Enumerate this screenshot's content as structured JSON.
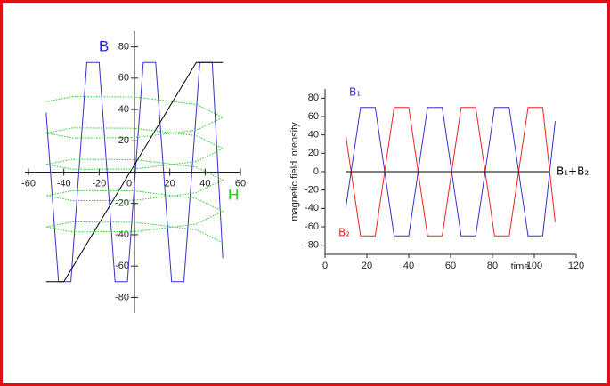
{
  "chart_data": [
    {
      "type": "line",
      "xlabel": "H",
      "ylabel": "B",
      "xlim": [
        -60,
        60
      ],
      "ylim": [
        -90,
        90
      ],
      "xticks": [
        -60,
        -40,
        -20,
        0,
        20,
        40,
        60
      ],
      "yticks": [
        -80,
        -60,
        -40,
        -20,
        0,
        20,
        40,
        60,
        80
      ],
      "series": [
        {
          "color": "#3333cc",
          "line_style": "solid",
          "x": [
            -50,
            -43,
            -36,
            -27,
            -20,
            -11,
            -4,
            5,
            12,
            21,
            28,
            37,
            44,
            50
          ],
          "values": [
            38,
            -70,
            -70,
            70,
            70,
            -70,
            -70,
            70,
            70,
            -70,
            -70,
            70,
            70,
            -55
          ]
        },
        {
          "color": "#000000",
          "line_style": "solid",
          "x": [
            -50,
            -40,
            35,
            50
          ],
          "values": [
            -70,
            -70,
            70,
            70
          ]
        },
        {
          "color": "#22cc22",
          "line_style": "dotted",
          "x": [
            50,
            35,
            0,
            -35,
            -50,
            -35,
            0,
            35,
            50,
            35,
            0,
            -35,
            -50,
            -35,
            0,
            35,
            50,
            35,
            0,
            -35,
            -50,
            -35,
            0,
            35,
            50,
            35,
            0,
            -35,
            -50,
            -35,
            0,
            35,
            50,
            35,
            0,
            -35,
            -50
          ],
          "values": [
            -45,
            -36.8,
            -32,
            -31.8,
            -35,
            -38.2,
            -38,
            -33.2,
            -25,
            -16.8,
            -12,
            -11.8,
            -15,
            -18.2,
            -18,
            -13.2,
            -5,
            3.2,
            8,
            8.2,
            5,
            1.8,
            2,
            6.8,
            15,
            23.2,
            28,
            28.2,
            25,
            21.8,
            22,
            26.8,
            35,
            43.2,
            48,
            48.2,
            45
          ]
        }
      ]
    },
    {
      "type": "line",
      "xlabel": "time",
      "ylabel": "magnetic field intensity",
      "xlim": [
        0,
        120
      ],
      "ylim": [
        -90,
        90
      ],
      "xticks": [
        0,
        20,
        40,
        60,
        80,
        100,
        120
      ],
      "yticks": [
        -80,
        -60,
        -40,
        -20,
        0,
        20,
        40,
        60,
        80
      ],
      "series": [
        {
          "name": "B₁",
          "color": "#3333cc",
          "x": [
            10,
            17,
            24,
            33,
            40,
            49,
            56,
            65,
            72,
            81,
            88,
            97,
            104,
            110
          ],
          "values": [
            -38,
            70,
            70,
            -70,
            -70,
            70,
            70,
            -70,
            -70,
            70,
            70,
            -70,
            -70,
            55
          ]
        },
        {
          "name": "B₂",
          "color": "#ee2222",
          "x": [
            10,
            17,
            24,
            33,
            40,
            49,
            56,
            65,
            72,
            81,
            88,
            97,
            104,
            110
          ],
          "values": [
            38,
            -70,
            -70,
            70,
            70,
            -70,
            -70,
            70,
            70,
            -70,
            -70,
            70,
            70,
            -55
          ]
        },
        {
          "name": "B₁+B₂",
          "color": "#000000",
          "x": [
            10,
            107
          ],
          "values": [
            0,
            0
          ]
        }
      ]
    }
  ]
}
